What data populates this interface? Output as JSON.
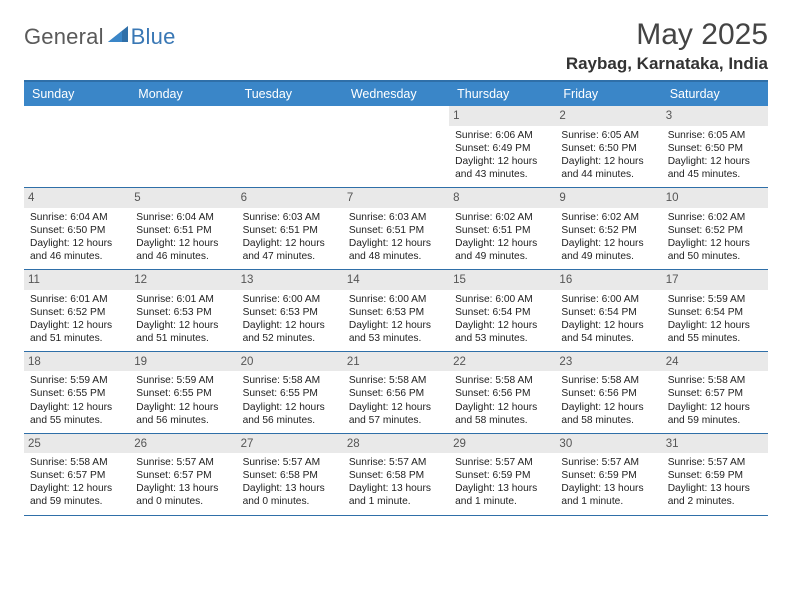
{
  "logo": {
    "part1": "General",
    "part2": "Blue"
  },
  "title": {
    "month": "May 2025",
    "location": "Raybag, Karnataka, India"
  },
  "colors": {
    "header_bg": "#3a86c8",
    "header_border": "#2f6fa8",
    "daynum_bg": "#e9e9e9",
    "logo_gray": "#5a5a5a",
    "logo_blue": "#3a78b5"
  },
  "day_names": [
    "Sunday",
    "Monday",
    "Tuesday",
    "Wednesday",
    "Thursday",
    "Friday",
    "Saturday"
  ],
  "weeks": [
    [
      {
        "n": "",
        "empty": true
      },
      {
        "n": "",
        "empty": true
      },
      {
        "n": "",
        "empty": true
      },
      {
        "n": "",
        "empty": true
      },
      {
        "n": "1",
        "sr": "Sunrise: 6:06 AM",
        "ss": "Sunset: 6:49 PM",
        "d1": "Daylight: 12 hours",
        "d2": "and 43 minutes."
      },
      {
        "n": "2",
        "sr": "Sunrise: 6:05 AM",
        "ss": "Sunset: 6:50 PM",
        "d1": "Daylight: 12 hours",
        "d2": "and 44 minutes."
      },
      {
        "n": "3",
        "sr": "Sunrise: 6:05 AM",
        "ss": "Sunset: 6:50 PM",
        "d1": "Daylight: 12 hours",
        "d2": "and 45 minutes."
      }
    ],
    [
      {
        "n": "4",
        "sr": "Sunrise: 6:04 AM",
        "ss": "Sunset: 6:50 PM",
        "d1": "Daylight: 12 hours",
        "d2": "and 46 minutes."
      },
      {
        "n": "5",
        "sr": "Sunrise: 6:04 AM",
        "ss": "Sunset: 6:51 PM",
        "d1": "Daylight: 12 hours",
        "d2": "and 46 minutes."
      },
      {
        "n": "6",
        "sr": "Sunrise: 6:03 AM",
        "ss": "Sunset: 6:51 PM",
        "d1": "Daylight: 12 hours",
        "d2": "and 47 minutes."
      },
      {
        "n": "7",
        "sr": "Sunrise: 6:03 AM",
        "ss": "Sunset: 6:51 PM",
        "d1": "Daylight: 12 hours",
        "d2": "and 48 minutes."
      },
      {
        "n": "8",
        "sr": "Sunrise: 6:02 AM",
        "ss": "Sunset: 6:51 PM",
        "d1": "Daylight: 12 hours",
        "d2": "and 49 minutes."
      },
      {
        "n": "9",
        "sr": "Sunrise: 6:02 AM",
        "ss": "Sunset: 6:52 PM",
        "d1": "Daylight: 12 hours",
        "d2": "and 49 minutes."
      },
      {
        "n": "10",
        "sr": "Sunrise: 6:02 AM",
        "ss": "Sunset: 6:52 PM",
        "d1": "Daylight: 12 hours",
        "d2": "and 50 minutes."
      }
    ],
    [
      {
        "n": "11",
        "sr": "Sunrise: 6:01 AM",
        "ss": "Sunset: 6:52 PM",
        "d1": "Daylight: 12 hours",
        "d2": "and 51 minutes."
      },
      {
        "n": "12",
        "sr": "Sunrise: 6:01 AM",
        "ss": "Sunset: 6:53 PM",
        "d1": "Daylight: 12 hours",
        "d2": "and 51 minutes."
      },
      {
        "n": "13",
        "sr": "Sunrise: 6:00 AM",
        "ss": "Sunset: 6:53 PM",
        "d1": "Daylight: 12 hours",
        "d2": "and 52 minutes."
      },
      {
        "n": "14",
        "sr": "Sunrise: 6:00 AM",
        "ss": "Sunset: 6:53 PM",
        "d1": "Daylight: 12 hours",
        "d2": "and 53 minutes."
      },
      {
        "n": "15",
        "sr": "Sunrise: 6:00 AM",
        "ss": "Sunset: 6:54 PM",
        "d1": "Daylight: 12 hours",
        "d2": "and 53 minutes."
      },
      {
        "n": "16",
        "sr": "Sunrise: 6:00 AM",
        "ss": "Sunset: 6:54 PM",
        "d1": "Daylight: 12 hours",
        "d2": "and 54 minutes."
      },
      {
        "n": "17",
        "sr": "Sunrise: 5:59 AM",
        "ss": "Sunset: 6:54 PM",
        "d1": "Daylight: 12 hours",
        "d2": "and 55 minutes."
      }
    ],
    [
      {
        "n": "18",
        "sr": "Sunrise: 5:59 AM",
        "ss": "Sunset: 6:55 PM",
        "d1": "Daylight: 12 hours",
        "d2": "and 55 minutes."
      },
      {
        "n": "19",
        "sr": "Sunrise: 5:59 AM",
        "ss": "Sunset: 6:55 PM",
        "d1": "Daylight: 12 hours",
        "d2": "and 56 minutes."
      },
      {
        "n": "20",
        "sr": "Sunrise: 5:58 AM",
        "ss": "Sunset: 6:55 PM",
        "d1": "Daylight: 12 hours",
        "d2": "and 56 minutes."
      },
      {
        "n": "21",
        "sr": "Sunrise: 5:58 AM",
        "ss": "Sunset: 6:56 PM",
        "d1": "Daylight: 12 hours",
        "d2": "and 57 minutes."
      },
      {
        "n": "22",
        "sr": "Sunrise: 5:58 AM",
        "ss": "Sunset: 6:56 PM",
        "d1": "Daylight: 12 hours",
        "d2": "and 58 minutes."
      },
      {
        "n": "23",
        "sr": "Sunrise: 5:58 AM",
        "ss": "Sunset: 6:56 PM",
        "d1": "Daylight: 12 hours",
        "d2": "and 58 minutes."
      },
      {
        "n": "24",
        "sr": "Sunrise: 5:58 AM",
        "ss": "Sunset: 6:57 PM",
        "d1": "Daylight: 12 hours",
        "d2": "and 59 minutes."
      }
    ],
    [
      {
        "n": "25",
        "sr": "Sunrise: 5:58 AM",
        "ss": "Sunset: 6:57 PM",
        "d1": "Daylight: 12 hours",
        "d2": "and 59 minutes."
      },
      {
        "n": "26",
        "sr": "Sunrise: 5:57 AM",
        "ss": "Sunset: 6:57 PM",
        "d1": "Daylight: 13 hours",
        "d2": "and 0 minutes."
      },
      {
        "n": "27",
        "sr": "Sunrise: 5:57 AM",
        "ss": "Sunset: 6:58 PM",
        "d1": "Daylight: 13 hours",
        "d2": "and 0 minutes."
      },
      {
        "n": "28",
        "sr": "Sunrise: 5:57 AM",
        "ss": "Sunset: 6:58 PM",
        "d1": "Daylight: 13 hours",
        "d2": "and 1 minute."
      },
      {
        "n": "29",
        "sr": "Sunrise: 5:57 AM",
        "ss": "Sunset: 6:59 PM",
        "d1": "Daylight: 13 hours",
        "d2": "and 1 minute."
      },
      {
        "n": "30",
        "sr": "Sunrise: 5:57 AM",
        "ss": "Sunset: 6:59 PM",
        "d1": "Daylight: 13 hours",
        "d2": "and 1 minute."
      },
      {
        "n": "31",
        "sr": "Sunrise: 5:57 AM",
        "ss": "Sunset: 6:59 PM",
        "d1": "Daylight: 13 hours",
        "d2": "and 2 minutes."
      }
    ]
  ]
}
